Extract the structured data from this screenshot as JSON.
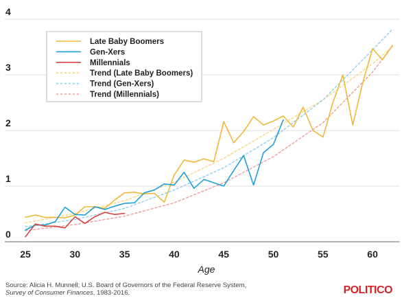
{
  "chart_data": {
    "type": "line",
    "title": "",
    "xlabel": "Age",
    "ylabel": "",
    "xlim": [
      25,
      62
    ],
    "ylim": [
      0,
      4
    ],
    "x_ticks": [
      "25",
      "30",
      "35",
      "40",
      "45",
      "50",
      "55",
      "60"
    ],
    "y_ticks": [
      "0",
      "1",
      "2",
      "3",
      "4"
    ],
    "grid": "horizontal",
    "legend_position": "top-left",
    "series": [
      {
        "name": "Late Baby Boomers",
        "color": "#f2b738",
        "style": "solid",
        "x": [
          25,
          26,
          27,
          28,
          29,
          30,
          31,
          32,
          33,
          34,
          35,
          36,
          37,
          38,
          39,
          40,
          41,
          42,
          43,
          44,
          45,
          46,
          47,
          48,
          49,
          50,
          51,
          52,
          53,
          54,
          55,
          56,
          57,
          58,
          59,
          60,
          61,
          62
        ],
        "y": [
          0.44,
          0.48,
          0.44,
          0.44,
          0.43,
          0.48,
          0.63,
          0.63,
          0.6,
          0.75,
          0.88,
          0.89,
          0.86,
          0.87,
          0.71,
          1.2,
          1.47,
          1.43,
          1.49,
          1.44,
          2.16,
          1.78,
          1.98,
          2.25,
          2.1,
          2.17,
          2.26,
          2.06,
          2.42,
          2.0,
          1.88,
          2.5,
          3.0,
          2.1,
          2.85,
          3.47,
          3.27,
          3.53
        ]
      },
      {
        "name": "Gen-Xers",
        "color": "#1f9fd9",
        "style": "solid",
        "x": [
          25,
          26,
          27,
          28,
          29,
          30,
          31,
          32,
          33,
          34,
          35,
          36,
          37,
          38,
          39,
          40,
          41,
          42,
          43,
          44,
          45,
          46,
          47,
          48,
          49,
          50,
          51
        ],
        "y": [
          0.21,
          0.3,
          0.3,
          0.36,
          0.62,
          0.49,
          0.48,
          0.63,
          0.58,
          0.64,
          0.69,
          0.7,
          0.88,
          0.93,
          1.04,
          1.02,
          1.25,
          0.96,
          1.12,
          1.06,
          1.0,
          1.28,
          1.55,
          1.02,
          1.6,
          1.75,
          2.19
        ]
      },
      {
        "name": "Millennials",
        "color": "#d64541",
        "style": "solid",
        "x": [
          25,
          26,
          27,
          28,
          29,
          30,
          31,
          32,
          33,
          34,
          35
        ],
        "y": [
          0.09,
          0.32,
          0.28,
          0.28,
          0.25,
          0.45,
          0.33,
          0.45,
          0.53,
          0.49,
          0.51
        ]
      },
      {
        "name": "Trend (Late Baby Boomers)",
        "color": "#fbd67e",
        "style": "dashed",
        "x": [
          25,
          30,
          35,
          40,
          45,
          50,
          55,
          60,
          62
        ],
        "y": [
          0.34,
          0.51,
          0.74,
          1.07,
          1.5,
          2.02,
          2.55,
          3.2,
          3.5
        ]
      },
      {
        "name": "Trend (Gen-Xers)",
        "color": "#8fd0ee",
        "style": "dashed",
        "x": [
          25,
          30,
          35,
          40,
          45,
          50,
          55,
          60,
          62
        ],
        "y": [
          0.27,
          0.4,
          0.6,
          0.93,
          1.33,
          1.87,
          2.55,
          3.45,
          3.82
        ]
      },
      {
        "name": "Trend (Millennials)",
        "color": "#ee9e9b",
        "style": "dashed",
        "x": [
          25,
          30,
          35,
          40,
          45,
          50,
          55,
          60,
          62
        ],
        "y": [
          0.2,
          0.31,
          0.46,
          0.7,
          1.06,
          1.53,
          2.14,
          3.05,
          3.52
        ]
      }
    ]
  },
  "source": {
    "line1": "Source: Alicia H. Munnell; U.S. Board of Governors of the Federal Reserve System,",
    "line2_italic": "Survey of Consumer Finances",
    "line2_rest": ", 1983-2016."
  },
  "logo": "POLITICO"
}
